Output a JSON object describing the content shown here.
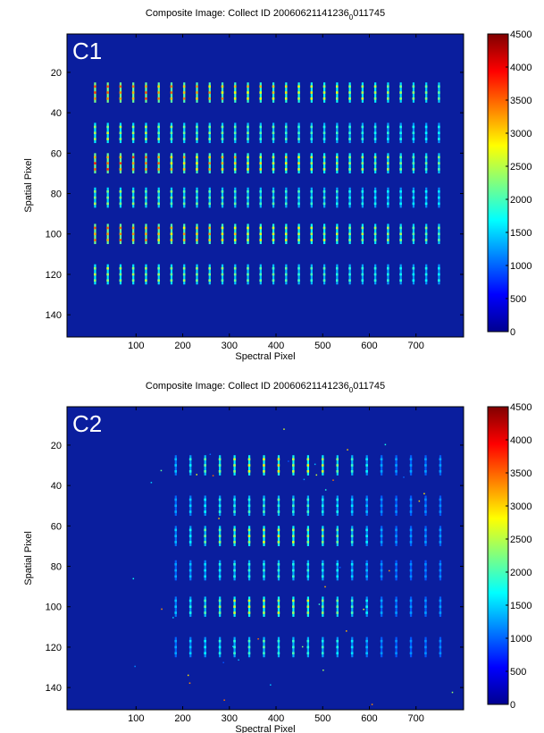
{
  "chart_data": [
    {
      "type": "image",
      "title": "Composite Image: Collect ID 20060621141236",
      "title_subscript": "0",
      "title_suffix": "011745",
      "label": "C1",
      "xlabel": "Spectral Pixel",
      "ylabel": "Spatial Pixel",
      "xlim": [
        -48,
        802
      ],
      "ylim": [
        151,
        1
      ],
      "xticks": [
        100,
        200,
        300,
        400,
        500,
        600,
        700
      ],
      "yticks": [
        20,
        40,
        60,
        80,
        100,
        120,
        140
      ],
      "clim": [
        0,
        4500
      ],
      "cticks": [
        0,
        500,
        1000,
        1500,
        2000,
        2500,
        3000,
        3500,
        4000,
        4500
      ],
      "colormap": "jet"
    },
    {
      "type": "image",
      "title": "Composite Image: Collect ID 20060621141236",
      "title_subscript": "0",
      "title_suffix": "011745",
      "label": "C2",
      "xlabel": "Spectral Pixel",
      "ylabel": "Spatial Pixel",
      "xlim": [
        -48,
        802
      ],
      "ylim": [
        151,
        1
      ],
      "xticks": [
        100,
        200,
        300,
        400,
        500,
        600,
        700
      ],
      "yticks": [
        20,
        40,
        60,
        80,
        100,
        120,
        140
      ],
      "clim": [
        0,
        4500
      ],
      "cticks": [
        0,
        500,
        1000,
        1500,
        2000,
        2500,
        3000,
        3500,
        4000,
        4500
      ],
      "colormap": "jet"
    }
  ]
}
